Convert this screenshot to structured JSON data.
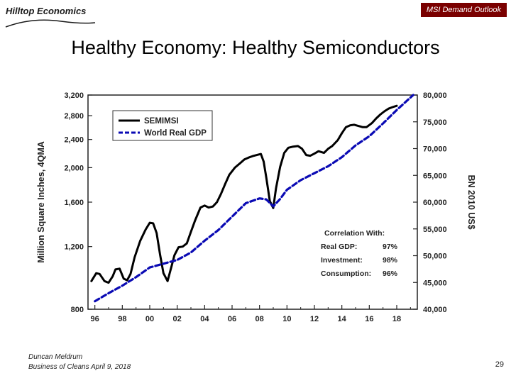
{
  "header": {
    "logo_text": "Hilltop Economics",
    "tag": "MSI Demand Outlook",
    "title": "Healthy Economy: Healthy Semiconductors"
  },
  "footer": {
    "author": "Duncan Meldrum",
    "event": "Business of Cleans April 9, 2018",
    "page": "29"
  },
  "colors": {
    "tag_bg": "#7a0000",
    "semimsi": "#000000",
    "gdp": "#0a0ab4"
  },
  "chart_data": {
    "type": "line",
    "title": "",
    "ylabel": "Million Square Inches, 4QMA",
    "y2label": "BN 2010 US$",
    "y_scale": "log",
    "ylim": [
      800,
      3200
    ],
    "y2lim": [
      40000,
      80000
    ],
    "y_ticks": [
      800,
      1200,
      1600,
      2000,
      2400,
      2800,
      3200
    ],
    "y_tick_labels": [
      "800",
      "1,200",
      "1,600",
      "2,000",
      "2,400",
      "2,800",
      "3,200"
    ],
    "y2_ticks": [
      40000,
      45000,
      50000,
      55000,
      60000,
      65000,
      70000,
      75000,
      80000
    ],
    "y2_tick_labels": [
      "40,000",
      "45,000",
      "50,000",
      "55,000",
      "60,000",
      "65,000",
      "70,000",
      "75,000",
      "80,000"
    ],
    "xlim": [
      1995.5,
      2019.5
    ],
    "x_ticks": [
      1996,
      1998,
      2000,
      2002,
      2004,
      2006,
      2008,
      2010,
      2012,
      2014,
      2016,
      2018
    ],
    "x_tick_labels": [
      "96",
      "98",
      "00",
      "02",
      "04",
      "06",
      "08",
      "10",
      "12",
      "14",
      "16",
      "18"
    ],
    "legend": {
      "placement": "top-left",
      "items": [
        "SEMIMSI",
        "World Real GDP"
      ]
    },
    "annotation": {
      "title": "Correlation With:",
      "rows": [
        {
          "label": "Real GDP:",
          "value": "97%"
        },
        {
          "label": "Investment:",
          "value": "98%"
        },
        {
          "label": "Consumption:",
          "value": "96%"
        }
      ]
    },
    "series": [
      {
        "name": "SEMIMSI",
        "axis": "left",
        "style": "solid",
        "x": [
          1995.75,
          1996.1,
          1996.35,
          1996.7,
          1997.0,
          1997.3,
          1997.5,
          1997.8,
          1998.1,
          1998.35,
          1998.6,
          1998.9,
          1999.3,
          1999.7,
          2000.0,
          2000.25,
          2000.5,
          2000.75,
          2001.0,
          2001.3,
          2001.6,
          2001.8,
          2002.1,
          2002.4,
          2002.7,
          2003.0,
          2003.3,
          2003.7,
          2004.0,
          2004.3,
          2004.6,
          2004.9,
          2005.2,
          2005.5,
          2005.8,
          2006.2,
          2006.6,
          2006.9,
          2007.2,
          2007.5,
          2007.8,
          2008.1,
          2008.3,
          2008.5,
          2008.75,
          2009.0,
          2009.2,
          2009.5,
          2009.8,
          2010.1,
          2010.4,
          2010.8,
          2011.1,
          2011.4,
          2011.7,
          2012.0,
          2012.3,
          2012.7,
          2013.0,
          2013.3,
          2013.7,
          2014.0,
          2014.3,
          2014.6,
          2014.9,
          2015.2,
          2015.5,
          2015.8,
          2016.2,
          2016.5,
          2016.8,
          2017.1,
          2017.4,
          2017.7,
          2018.0
        ],
        "values": [
          960,
          1010,
          1005,
          960,
          950,
          990,
          1035,
          1040,
          975,
          965,
          1005,
          1120,
          1245,
          1340,
          1400,
          1395,
          1310,
          1140,
          1010,
          960,
          1060,
          1135,
          1195,
          1200,
          1225,
          1320,
          1420,
          1545,
          1565,
          1545,
          1555,
          1600,
          1690,
          1800,
          1910,
          2000,
          2060,
          2110,
          2135,
          2155,
          2170,
          2185,
          2080,
          1870,
          1610,
          1540,
          1750,
          2010,
          2200,
          2275,
          2290,
          2300,
          2260,
          2170,
          2160,
          2190,
          2225,
          2200,
          2260,
          2300,
          2390,
          2500,
          2600,
          2630,
          2640,
          2620,
          2600,
          2600,
          2670,
          2750,
          2820,
          2880,
          2930,
          2960,
          2985
        ]
      },
      {
        "name": "World Real GDP",
        "axis": "right",
        "style": "dashed",
        "x": [
          1996.0,
          1997.0,
          1998.0,
          1999.0,
          2000.0,
          2001.0,
          2002.0,
          2003.0,
          2004.0,
          2005.0,
          2006.0,
          2007.0,
          2008.0,
          2008.5,
          2009.0,
          2009.5,
          2010.0,
          2011.0,
          2012.0,
          2013.0,
          2014.0,
          2015.0,
          2016.0,
          2017.0,
          2018.0,
          2019.2
        ],
        "values": [
          41500,
          43000,
          44400,
          46000,
          47800,
          48500,
          49200,
          50600,
          52800,
          54800,
          57300,
          59800,
          60700,
          60500,
          59200,
          60600,
          62300,
          64100,
          65400,
          66700,
          68400,
          70600,
          72300,
          74700,
          77200,
          80000
        ]
      }
    ]
  }
}
